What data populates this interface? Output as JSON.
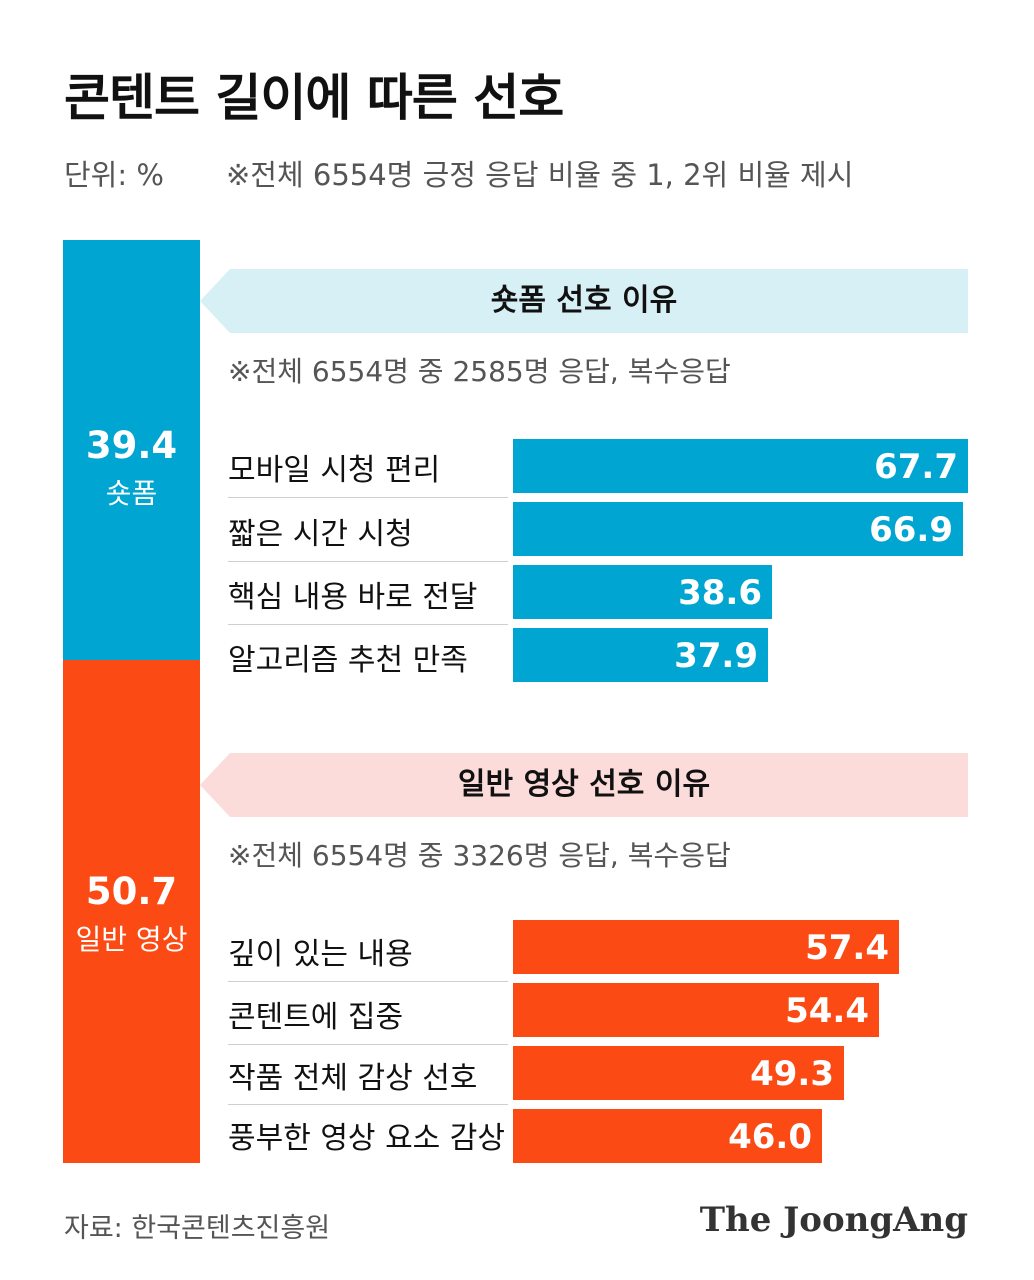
{
  "title": "콘텐트 길이에 따른 선호",
  "unit": "단위: %",
  "note": "※전체 6554명 긍정 응답 비율 중 1, 2위 비율 제시",
  "overall": {
    "short_value": "39.4",
    "short_label": "숏폼",
    "long_value": "50.7",
    "long_label": "일반 영상"
  },
  "sections": {
    "short": {
      "heading": "숏폼 선호 이유",
      "note": "※전체 6554명 중 2585명 응답, 복수응답"
    },
    "long": {
      "heading": "일반 영상 선호 이유",
      "note": "※전체 6554명 중 3326명 응답, 복수응답"
    }
  },
  "colors": {
    "short": "#00a5d1",
    "long": "#fb4a14",
    "short_banner": "#d6f0f5",
    "long_banner": "#fbdcdb"
  },
  "source": "자료: 한국콘텐츠진흥원",
  "logo": "The JoongAng",
  "chart_data": [
    {
      "type": "bar",
      "orientation": "horizontal",
      "title": "숏폼 선호 이유",
      "categories": [
        "모바일 시청 편리",
        "짧은 시간 시청",
        "핵심 내용 바로 전달",
        "알고리즘 추천 만족"
      ],
      "values": [
        67.7,
        66.9,
        38.6,
        37.9
      ],
      "value_labels": [
        "67.7",
        "66.9",
        "38.6",
        "37.9"
      ],
      "xlim": [
        0,
        67.7
      ]
    },
    {
      "type": "bar",
      "orientation": "horizontal",
      "title": "일반 영상 선호 이유",
      "categories": [
        "깊이 있는 내용",
        "콘텐트에 집중",
        "작품 전체 감상 선호",
        "풍부한 영상 요소 감상"
      ],
      "values": [
        57.4,
        54.4,
        49.3,
        46.0
      ],
      "value_labels": [
        "57.4",
        "54.4",
        "49.3",
        "46.0"
      ],
      "xlim": [
        0,
        67.7
      ]
    }
  ]
}
